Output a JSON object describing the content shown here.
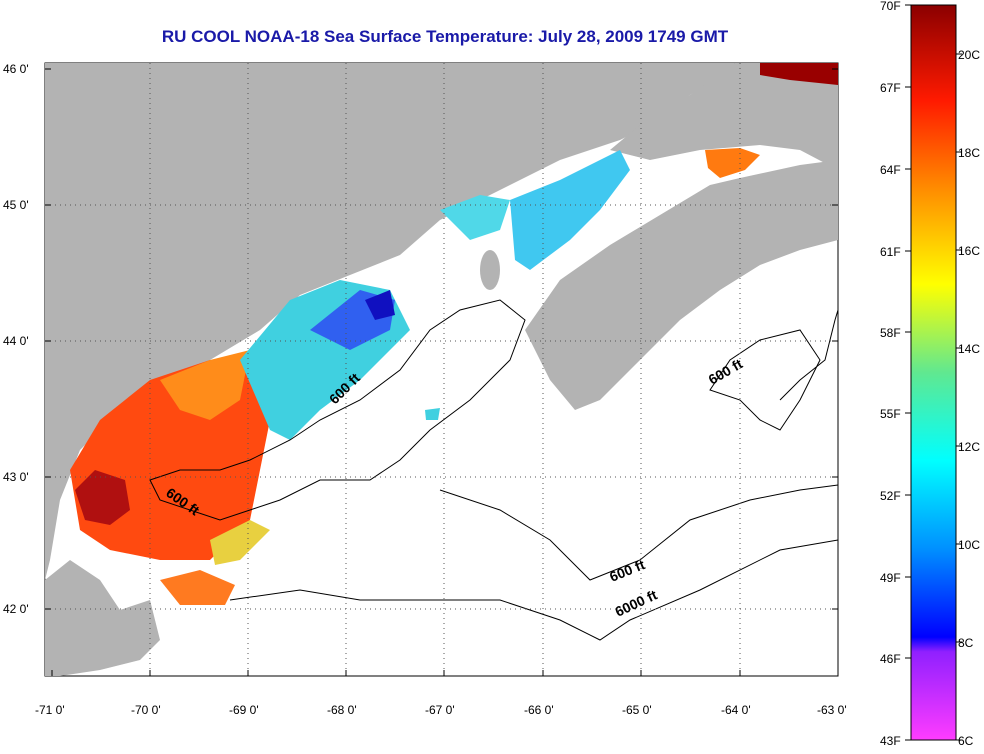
{
  "title": "RU COOL  NOAA-18  Sea Surface Temperature:  July 28, 2009 1749 GMT",
  "lat_labels": [
    "46 0'",
    "45 0'",
    "44 0'",
    "43 0'",
    "42 0'"
  ],
  "lon_labels": [
    "-71 0'",
    "-70 0'",
    "-69 0'",
    "-68 0'",
    "-67 0'",
    "-66 0'",
    "-65 0'",
    "-64 0'",
    "-63 0'"
  ],
  "colorbar": {
    "fahrenheit": [
      "70F",
      "67F",
      "64F",
      "61F",
      "58F",
      "55F",
      "52F",
      "49F",
      "46F",
      "43F"
    ],
    "celsius": [
      "20C",
      "18C",
      "16C",
      "14C",
      "12C",
      "10C",
      "8C",
      "6C"
    ],
    "colors": [
      "#8b0000",
      "#ff2000",
      "#ff8000",
      "#ffff00",
      "#40e0a0",
      "#00ffff",
      "#00a0ff",
      "#0000ff",
      "#9b30ff",
      "#ff30ff"
    ]
  },
  "contour_labels": [
    "600 ft",
    "600 ft",
    "600 ft",
    "600 ft",
    "6000 ft"
  ],
  "land_color": "#b3b3b3",
  "water_color": "#ffffff"
}
